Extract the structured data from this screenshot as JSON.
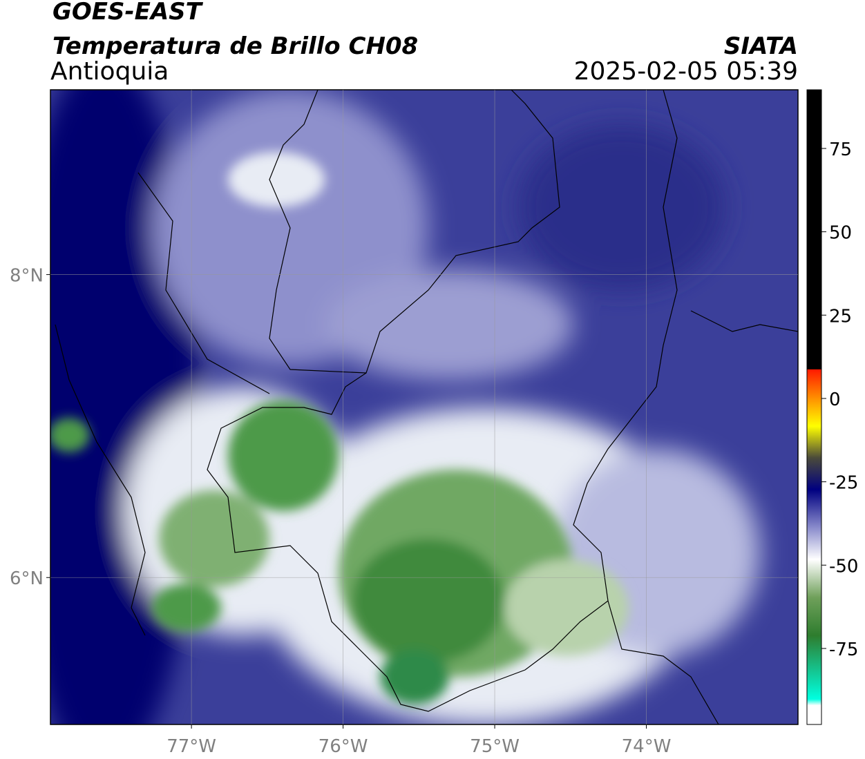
{
  "header": {
    "title": "GOES-EAST",
    "subtitle": "Temperatura de Brillo CH08",
    "region": "Antioquia",
    "source": "SIATA",
    "timestamp": "2025-02-05 05:39"
  },
  "map": {
    "xlim": [
      -77.93,
      -73.0
    ],
    "ylim": [
      5.03,
      9.22
    ],
    "xticks": [
      {
        "value": -77,
        "label": "77°W"
      },
      {
        "value": -76,
        "label": "76°W"
      },
      {
        "value": -75,
        "label": "75°W"
      },
      {
        "value": -74,
        "label": "74°W"
      }
    ],
    "yticks": [
      {
        "value": 6,
        "label": "6°N"
      },
      {
        "value": 8,
        "label": "8°N"
      }
    ],
    "grid": true
  },
  "colorbar": {
    "lim": [
      -97.8,
      92.6
    ],
    "ticks": [
      75,
      50,
      25,
      0,
      -25,
      -50,
      -75
    ]
  }
}
